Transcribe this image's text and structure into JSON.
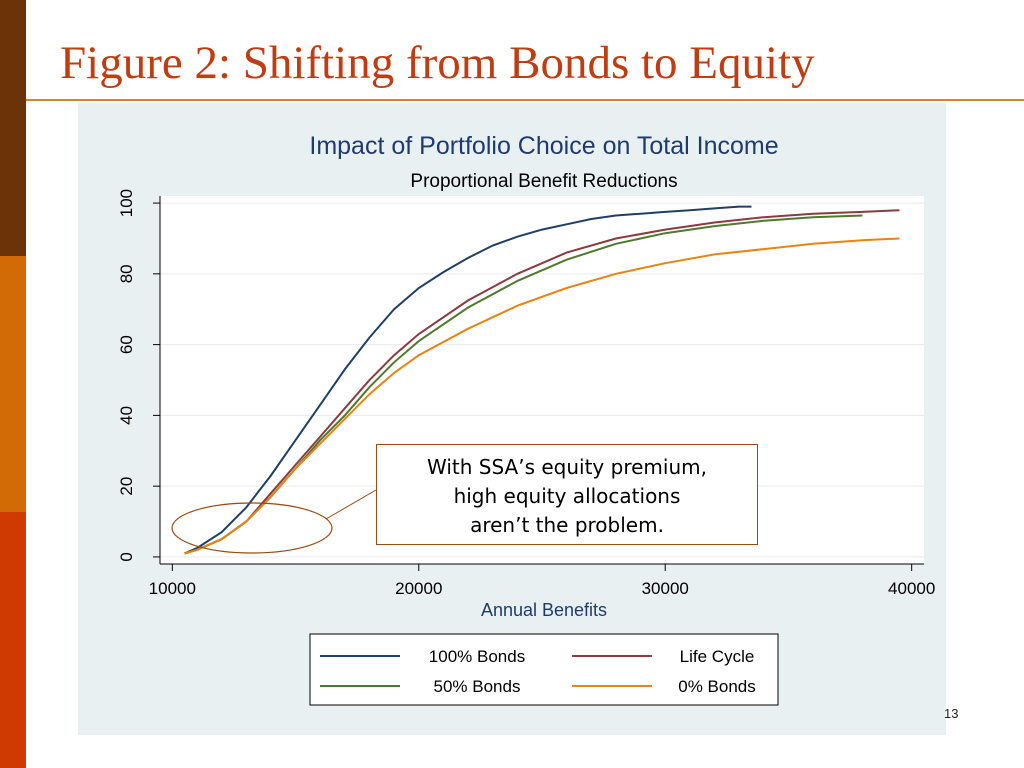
{
  "slide": {
    "title": "Figure 2: Shifting from Bonds to Equity",
    "page_number": "13"
  },
  "annotation": {
    "line1": "With SSA’s equity premium,",
    "line2": "high equity allocations",
    "line3": "aren’t the problem."
  },
  "colors": {
    "title": "#bf3d13",
    "sidebar": [
      "#6b3307",
      "#d26a06",
      "#cf3a03"
    ],
    "plot_region": "#e9f0f2",
    "chart_title": "#1e3a6e"
  },
  "chart_data": {
    "type": "line",
    "title": "Impact of Portfolio Choice on Total Income",
    "subtitle": "Proportional Benefit Reductions",
    "xlabel": "Annual Benefits",
    "ylabel": "",
    "xlim": [
      9500,
      40500
    ],
    "ylim": [
      -2,
      102
    ],
    "xticks": [
      10000,
      20000,
      30000,
      40000
    ],
    "yticks": [
      0,
      20,
      40,
      60,
      80,
      100
    ],
    "grid": true,
    "legend_position": "bottom",
    "series": [
      {
        "name": "100% Bonds",
        "color": "#1f3f66",
        "x": [
          10500,
          11000,
          12000,
          13000,
          14000,
          15000,
          16000,
          17000,
          18000,
          19000,
          20000,
          21000,
          22000,
          23000,
          24000,
          25000,
          26000,
          27000,
          28000,
          29000,
          30000,
          31000,
          32000,
          33000,
          33500
        ],
        "y": [
          1,
          2.5,
          7,
          14,
          23,
          33,
          43,
          53,
          62,
          70,
          76,
          80.5,
          84.5,
          88,
          90.5,
          92.5,
          94,
          95.5,
          96.5,
          97,
          97.5,
          98,
          98.5,
          99,
          99
        ]
      },
      {
        "name": "Life Cycle",
        "color": "#8b3a3f",
        "x": [
          10500,
          11000,
          12000,
          13000,
          14000,
          15000,
          16000,
          17000,
          18000,
          19000,
          20000,
          22000,
          24000,
          26000,
          28000,
          30000,
          32000,
          34000,
          36000,
          38000,
          39500
        ],
        "y": [
          1,
          2,
          5,
          10,
          18,
          26,
          34,
          42,
          50,
          57,
          63,
          72.5,
          80,
          86,
          90,
          92.5,
          94.5,
          96,
          97,
          97.5,
          98
        ]
      },
      {
        "name": "50% Bonds",
        "color": "#4e7a2e",
        "x": [
          10500,
          11000,
          12000,
          13000,
          14000,
          15000,
          16000,
          17000,
          18000,
          19000,
          20000,
          22000,
          24000,
          26000,
          28000,
          30000,
          32000,
          34000,
          36000,
          38000
        ],
        "y": [
          1,
          2,
          5,
          10,
          17,
          25,
          33,
          40,
          48,
          55,
          61,
          70.5,
          78,
          84,
          88.5,
          91.5,
          93.5,
          95,
          96,
          96.5
        ]
      },
      {
        "name": "0% Bonds",
        "color": "#e68414",
        "x": [
          10500,
          11000,
          12000,
          13000,
          14000,
          15000,
          16000,
          17000,
          18000,
          19000,
          20000,
          22000,
          24000,
          26000,
          28000,
          30000,
          32000,
          34000,
          36000,
          38000,
          39500
        ],
        "y": [
          1,
          2,
          5,
          10,
          17,
          25,
          32,
          39,
          46,
          52,
          57,
          64.5,
          71,
          76,
          80,
          83,
          85.5,
          87,
          88.5,
          89.5,
          90
        ]
      }
    ]
  }
}
